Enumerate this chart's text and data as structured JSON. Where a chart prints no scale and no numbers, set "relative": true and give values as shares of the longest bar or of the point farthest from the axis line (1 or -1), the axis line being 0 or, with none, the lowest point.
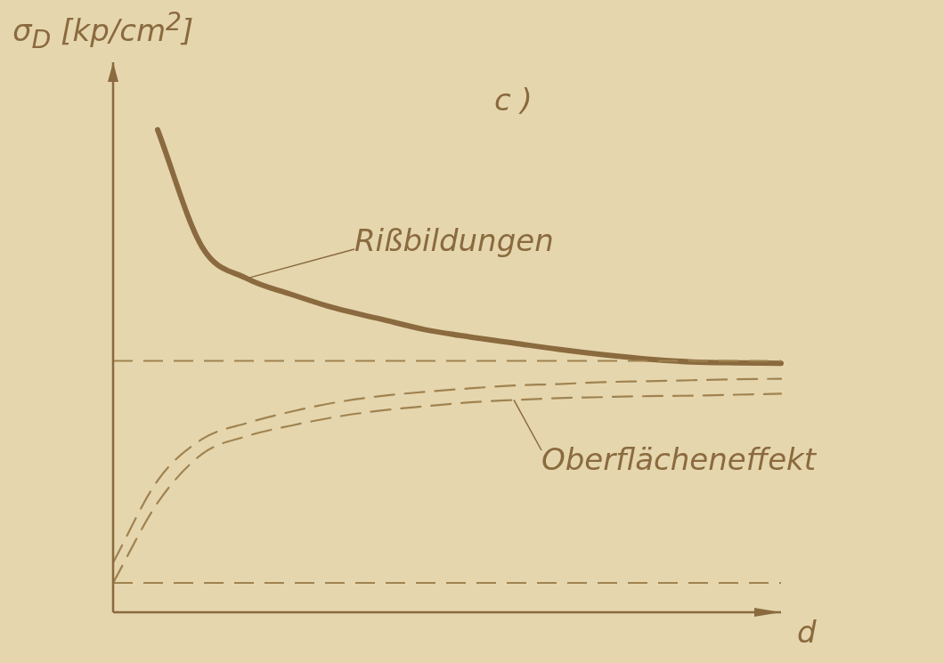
{
  "chart_data": {
    "type": "line",
    "relative": true,
    "title": "c )",
    "xlabel": "d",
    "ylabel": "σ$_{D}$ [kp/cm$^{2}$]",
    "categories": [
      null,
      null,
      null,
      null,
      null,
      null,
      null,
      null,
      null,
      null,
      null,
      null,
      null,
      null,
      null,
      null
    ],
    "series": [
      {
        "color": "#8a6a3e",
        "line_style": "solid",
        "values": [
          null,
          1.0,
          0.757,
          0.692,
          0.659,
          0.63,
          0.608,
          0.586,
          0.571,
          0.558,
          0.545,
          0.534,
          0.525,
          0.519,
          0.517,
          0.516
        ]
      },
      {
        "color": "#a08350",
        "line_style": "dashed",
        "values": [
          0.103,
          0.273,
          0.359,
          0.392,
          0.416,
          0.435,
          0.448,
          0.457,
          0.464,
          0.47,
          0.473,
          0.477,
          0.479,
          0.481,
          0.483,
          0.484
        ]
      },
      {
        "color": "#a08350",
        "line_style": "dashed",
        "values": [
          0.061,
          0.227,
          0.328,
          0.365,
          0.387,
          0.405,
          0.418,
          0.427,
          0.435,
          0.44,
          0.444,
          0.446,
          0.448,
          0.449,
          0.451,
          0.453
        ]
      }
    ],
    "ref_lines": [
      {
        "axis": "y",
        "value": 0.521,
        "color": "#a08350",
        "line_style": "dashed"
      },
      {
        "axis": "y",
        "value": 0.061,
        "color": "#a08350",
        "line_style": "dashed"
      }
    ],
    "annotations": [
      "Rißbildungen",
      "Oberflächeneffekt"
    ],
    "legend": false,
    "grid": false,
    "marker": "none"
  }
}
